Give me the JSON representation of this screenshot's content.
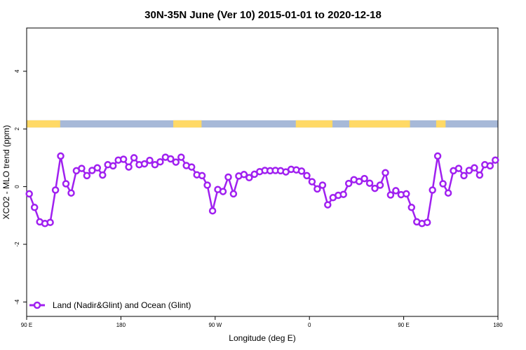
{
  "chart_data": {
    "type": "line",
    "title": "30N-35N June (Ver 10)   2015-01-01 to 2020-12-18",
    "xlabel": "Longitude (deg E)",
    "ylabel": "XCO2 - MLO trend (ppm)",
    "xlim": [
      90,
      540
    ],
    "ylim": [
      -4.5,
      5.5
    ],
    "x_ticks": [
      {
        "value": 90,
        "label": "90 E"
      },
      {
        "value": 180,
        "label": "180"
      },
      {
        "value": 270,
        "label": "90 W"
      },
      {
        "value": 360,
        "label": "0"
      },
      {
        "value": 450,
        "label": "90 E"
      },
      {
        "value": 540,
        "label": "180"
      }
    ],
    "y_ticks": [
      {
        "value": -4,
        "label": "-4"
      },
      {
        "value": -2,
        "label": "-2"
      },
      {
        "value": 0,
        "label": "0"
      },
      {
        "value": 2,
        "label": "2"
      },
      {
        "value": 4,
        "label": "4"
      }
    ],
    "grid": false,
    "legend_position": "bottom-left",
    "series": [
      {
        "name": "Land (Nadir&Glint) and Ocean (Glint)",
        "color": "#a020f0",
        "marker": "open-circle",
        "x": [
          92.5,
          97.5,
          102.5,
          107.5,
          112.5,
          117.5,
          122.5,
          127.5,
          132.5,
          137.5,
          142.5,
          147.5,
          152.5,
          157.5,
          162.5,
          167.5,
          172.5,
          177.5,
          182.5,
          187.5,
          192.5,
          197.5,
          202.5,
          207.5,
          212.5,
          217.5,
          222.5,
          227.5,
          232.5,
          237.5,
          242.5,
          247.5,
          252.5,
          257.5,
          262.5,
          267.5,
          272.5,
          277.5,
          282.5,
          287.5,
          292.5,
          297.5,
          302.5,
          307.5,
          312.5,
          317.5,
          322.5,
          327.5,
          332.5,
          337.5,
          342.5,
          347.5,
          352.5,
          357.5,
          362.5,
          367.5,
          372.5,
          377.5,
          382.5,
          387.5,
          392.5,
          397.5,
          402.5,
          407.5,
          412.5,
          417.5,
          422.5,
          427.5,
          432.5,
          437.5,
          442.5,
          447.5,
          452.5,
          457.5,
          462.5,
          467.5,
          472.5,
          477.5,
          482.5,
          487.5,
          492.5,
          497.5,
          502.5,
          507.5,
          512.5,
          517.5,
          522.5,
          527.5,
          532.5,
          537.5
        ],
        "y": [
          -0.25,
          -0.72,
          -1.22,
          -1.28,
          -1.24,
          -0.12,
          1.06,
          0.1,
          -0.22,
          0.55,
          0.63,
          0.38,
          0.56,
          0.65,
          0.4,
          0.76,
          0.72,
          0.92,
          0.95,
          0.68,
          1.0,
          0.76,
          0.79,
          0.91,
          0.76,
          0.86,
          1.02,
          0.96,
          0.85,
          1.02,
          0.73,
          0.68,
          0.41,
          0.38,
          0.05,
          -0.84,
          -0.1,
          -0.17,
          0.33,
          -0.25,
          0.37,
          0.42,
          0.31,
          0.43,
          0.52,
          0.56,
          0.55,
          0.56,
          0.55,
          0.51,
          0.6,
          0.58,
          0.54,
          0.38,
          0.17,
          -0.08,
          0.05,
          -0.63,
          -0.38,
          -0.3,
          -0.27,
          0.11,
          0.24,
          0.18,
          0.28,
          0.12,
          -0.06,
          0.05,
          0.48,
          -0.29,
          -0.14,
          -0.28,
          -0.25,
          -0.72,
          -1.22,
          -1.28,
          -1.24,
          -0.12,
          1.06,
          0.1,
          -0.22,
          0.55,
          0.63,
          0.38,
          0.56,
          0.65,
          0.4,
          0.76,
          0.72,
          0.92
        ]
      }
    ],
    "surface_band": {
      "y_range": [
        2.05,
        2.3
      ],
      "land_color": "#ffd966",
      "ocean_color": "#a7b9d8",
      "land_segments": [
        [
          90,
          122
        ],
        [
          230,
          257
        ],
        [
          347,
          382
        ],
        [
          398,
          456
        ],
        [
          481,
          490
        ]
      ]
    }
  }
}
